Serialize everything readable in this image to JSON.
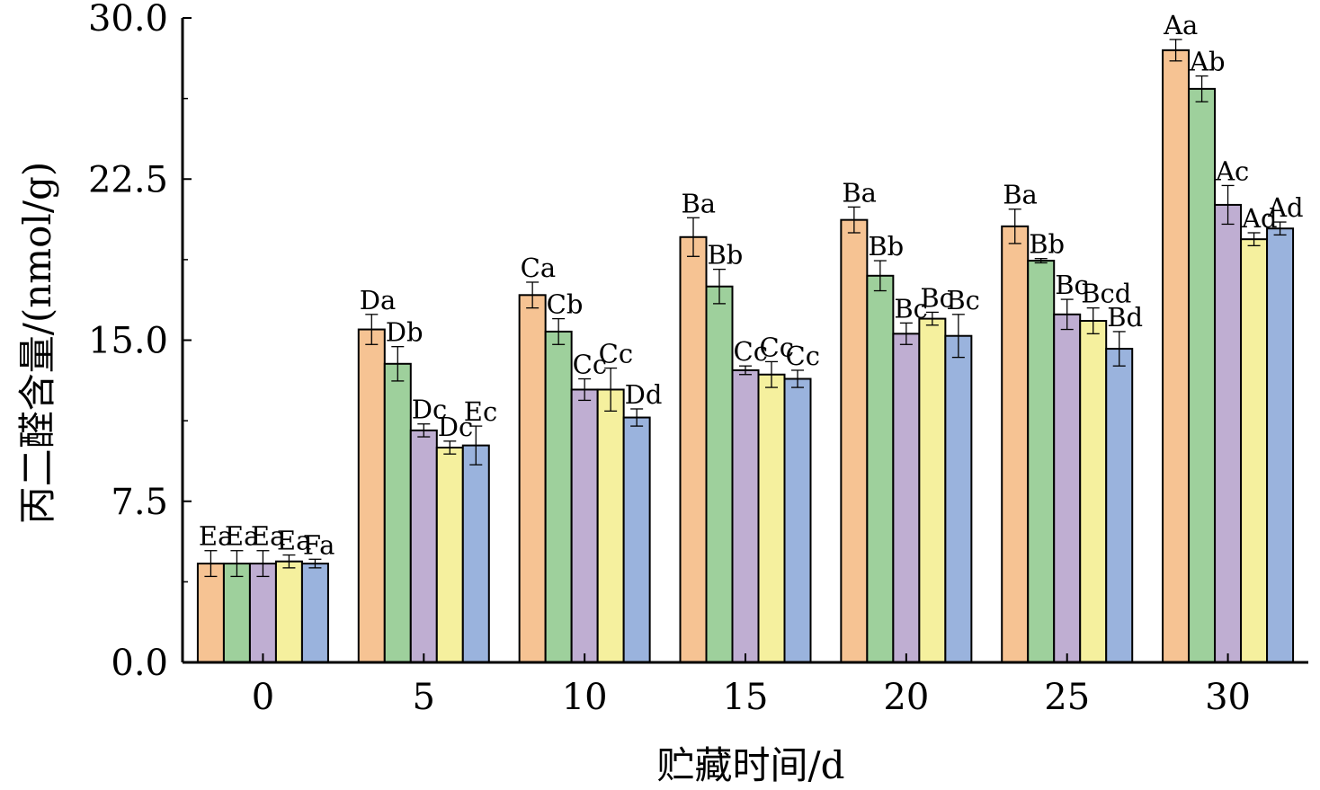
{
  "chart_data": {
    "type": "bar",
    "title": "",
    "xlabel": "贮藏时间/d",
    "ylabel": "丙二醛含量/(nmol/g)",
    "categories": [
      "0",
      "5",
      "10",
      "15",
      "20",
      "25",
      "30"
    ],
    "ylim": [
      0,
      30
    ],
    "yticks": [
      "0.0",
      "7.5",
      "15.0",
      "22.5",
      "30.0"
    ],
    "grid": false,
    "legend": "none",
    "series": [
      {
        "color": "#F6C393",
        "values": [
          4.6,
          15.5,
          17.1,
          19.8,
          20.6,
          20.3,
          28.5
        ],
        "errors": [
          0.6,
          0.7,
          0.6,
          0.9,
          0.6,
          0.8,
          0.5
        ],
        "labels": [
          "Ea",
          "Da",
          "Ca",
          "Ba",
          "Ba",
          "Ba",
          "Aa"
        ]
      },
      {
        "color": "#9ED09C",
        "values": [
          4.6,
          13.9,
          15.4,
          17.5,
          18.0,
          18.7,
          26.7
        ],
        "errors": [
          0.6,
          0.8,
          0.6,
          0.8,
          0.7,
          0.1,
          0.6
        ],
        "labels": [
          "Ea",
          "Db",
          "Cb",
          "Bb",
          "Bb",
          "Bb",
          "Ab"
        ]
      },
      {
        "color": "#BFAED2",
        "values": [
          4.6,
          10.8,
          12.7,
          13.6,
          15.3,
          16.2,
          21.3
        ],
        "errors": [
          0.6,
          0.3,
          0.5,
          0.2,
          0.5,
          0.7,
          0.9
        ],
        "labels": [
          "Ea",
          "Dc",
          "Cc",
          "Cc",
          "Bc",
          "Bc",
          "Ac"
        ]
      },
      {
        "color": "#F5F09E",
        "values": [
          4.7,
          10.0,
          12.7,
          13.4,
          16.0,
          15.9,
          19.7
        ],
        "errors": [
          0.3,
          0.3,
          1.0,
          0.6,
          0.3,
          0.6,
          0.3
        ],
        "labels": [
          "Ea",
          "Dc",
          "Cc",
          "Cc",
          "Bc",
          "Bcd",
          "Ad"
        ]
      },
      {
        "color": "#9AB3DD",
        "values": [
          4.6,
          10.1,
          11.4,
          13.2,
          15.2,
          14.6,
          20.2
        ],
        "errors": [
          0.2,
          0.9,
          0.4,
          0.4,
          1.0,
          0.8,
          0.3
        ],
        "labels": [
          "Fa",
          "Ec",
          "Dd",
          "Cc",
          "Bc",
          "Bd",
          "Ad"
        ]
      }
    ]
  }
}
